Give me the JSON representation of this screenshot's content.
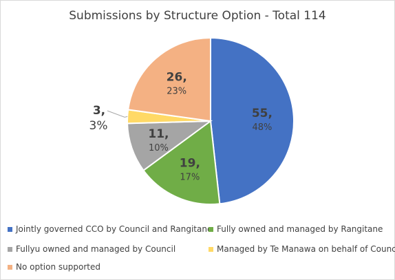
{
  "chart_data": {
    "type": "pie",
    "title": "Submissions by Structure Option - Total 114",
    "total": 114,
    "start_angle_deg": 0,
    "direction": "clockwise",
    "legend_position": "bottom",
    "slices": [
      {
        "name": "Jointly governed CCO by Council and Rangitane",
        "value": 55,
        "value_label": "55,",
        "percent_label": "48%",
        "color": "#4472C4"
      },
      {
        "name": "Fully owned and managed by Rangitane",
        "value": 19,
        "value_label": "19,",
        "percent_label": "17%",
        "color": "#70AD47"
      },
      {
        "name": "Fullyu owned and managed by Council",
        "value": 11,
        "value_label": "11,",
        "percent_label": "10%",
        "color": "#A5A5A5"
      },
      {
        "name": "Managed by Te Manawa on behalf of Council",
        "value": 3,
        "value_label": "3,",
        "percent_label": "3%",
        "color": "#FFD966"
      },
      {
        "name": "No option supported",
        "value": 26,
        "value_label": "26,",
        "percent_label": "23%",
        "color": "#F4B183"
      }
    ]
  }
}
